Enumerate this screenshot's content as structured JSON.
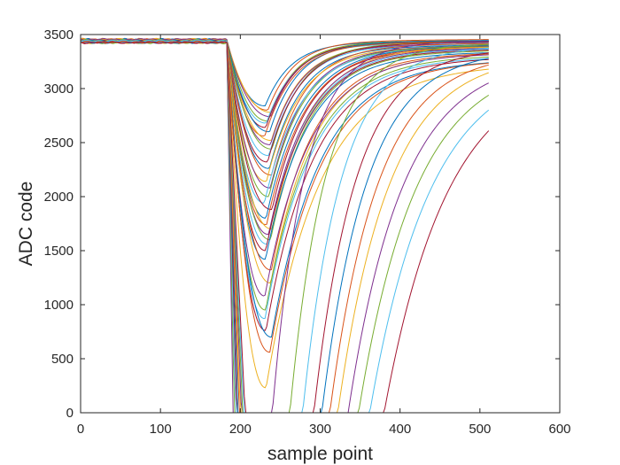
{
  "chart_data": {
    "type": "line",
    "title": "",
    "xlabel": "sample point",
    "ylabel": "ADC code",
    "xlim": [
      0,
      600
    ],
    "ylim": [
      0,
      3500
    ],
    "xticks": [
      0,
      100,
      200,
      300,
      400,
      500,
      600
    ],
    "yticks": [
      0,
      500,
      1000,
      1500,
      2000,
      2500,
      3000,
      3500
    ],
    "x_tick_labels": [
      "0",
      "100",
      "200",
      "300",
      "400",
      "500",
      "600"
    ],
    "y_tick_labels": [
      "0",
      "500",
      "1000",
      "1500",
      "2000",
      "2500",
      "3000",
      "3500"
    ],
    "grid": false,
    "box": true,
    "legend": "none",
    "x_range": [
      1,
      512
    ],
    "baseline": 3440,
    "drop_start_x": 183,
    "description_note": "Family of curves: flat near 3440 until ~x=183, then a dip whose minimum is near x=235; deeper curves clip at 0 and recover later.",
    "series_minima": [
      2840,
      2800,
      2780,
      2740,
      2700,
      2680,
      2640,
      2600,
      2560,
      2520,
      2480,
      2440,
      2380,
      2320,
      2260,
      2200,
      2140,
      2080,
      2000,
      1940,
      1880,
      1800,
      1740,
      1700,
      1650,
      1600,
      1560,
      1500,
      1420,
      1320,
      1200,
      1080,
      950,
      870,
      760,
      700,
      560,
      230
    ],
    "clipped_series_recovery_x": [
      240,
      262,
      278,
      292,
      302,
      312,
      322,
      335,
      348,
      362,
      380
    ],
    "color_order": [
      "#0072BD",
      "#D95319",
      "#EDB120",
      "#7E2F8E",
      "#77AC30",
      "#4DBEEE",
      "#A2142F"
    ]
  }
}
